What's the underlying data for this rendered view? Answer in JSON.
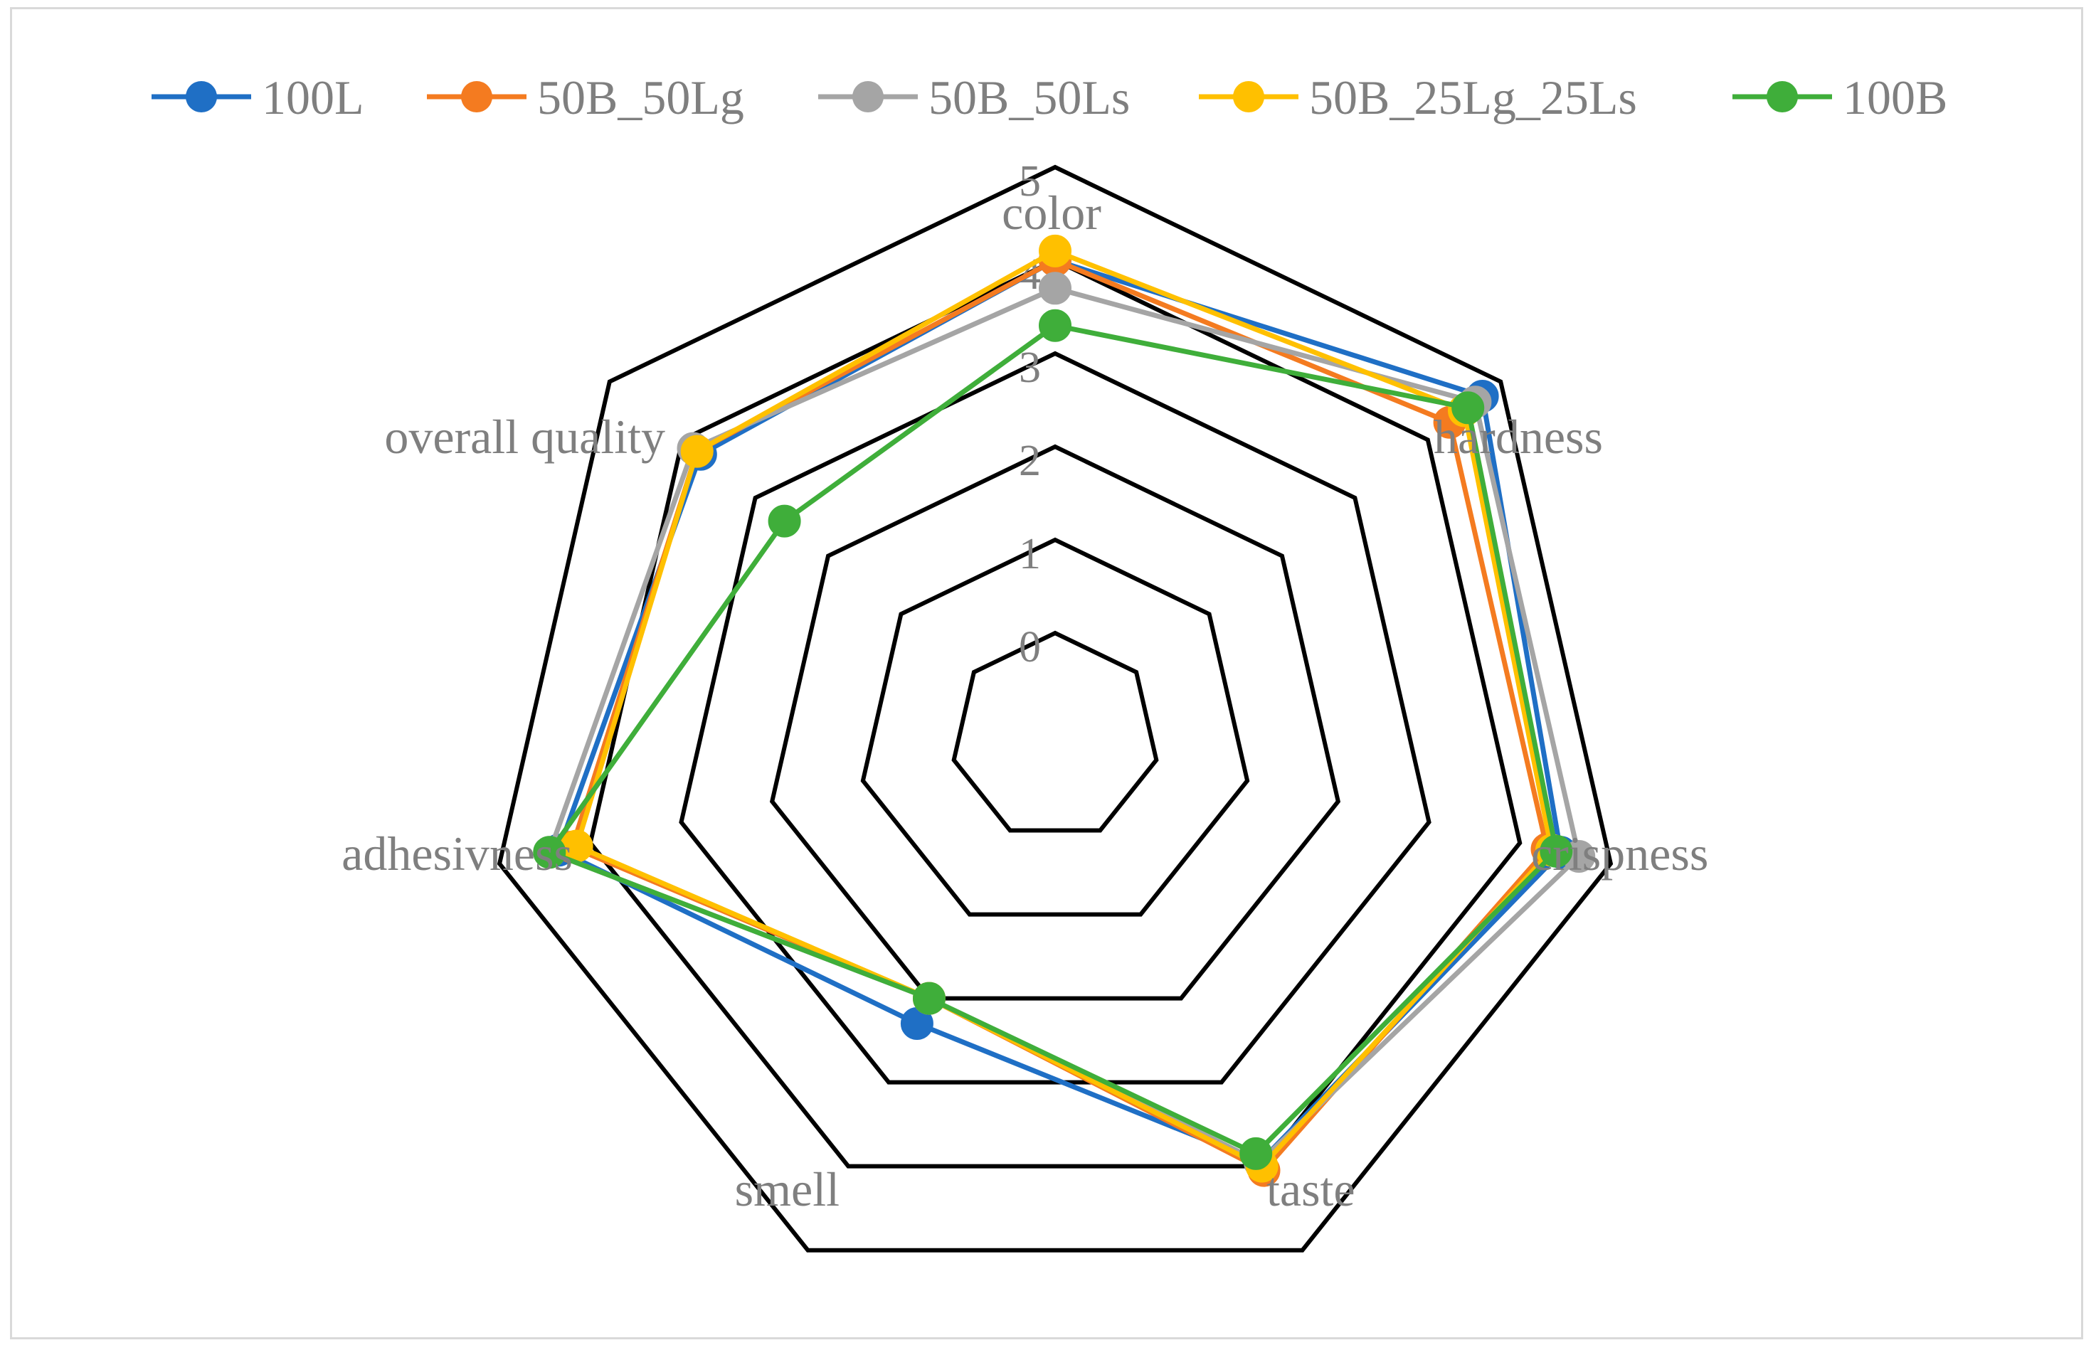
{
  "chart_data": {
    "type": "radar",
    "title": "",
    "categories": [
      "color",
      "hardness",
      "crispness",
      "taste",
      "smell",
      "adhesivness",
      "overall quality"
    ],
    "r_ticks": [
      "0",
      "1",
      "2",
      "3",
      "4",
      "5"
    ],
    "r_range": [
      0,
      5
    ],
    "gridlines": true,
    "legend_position": "top",
    "series": [
      {
        "name": "100L",
        "color": "#1f6fc5",
        "values": [
          4.0,
          4.75,
          4.45,
          3.95,
          2.3,
          4.35,
          3.75
        ]
      },
      {
        "name": "50B_50Lg",
        "color": "#f47b20",
        "values": [
          4.0,
          4.3,
          4.3,
          4.05,
          2.0,
          4.2,
          3.8
        ]
      },
      {
        "name": "50B_50Ls",
        "color": "#a5a5a5",
        "values": [
          3.7,
          4.65,
          4.65,
          3.95,
          2.0,
          4.45,
          3.85
        ]
      },
      {
        "name": "50B_25Lg_25Ls",
        "color": "#ffc000",
        "values": [
          4.1,
          4.5,
          4.35,
          4.0,
          2.0,
          4.15,
          3.8
        ]
      },
      {
        "name": "100B",
        "color": "#3fae3a",
        "values": [
          3.3,
          4.55,
          4.4,
          3.85,
          2.0,
          4.45,
          2.6
        ]
      }
    ]
  }
}
